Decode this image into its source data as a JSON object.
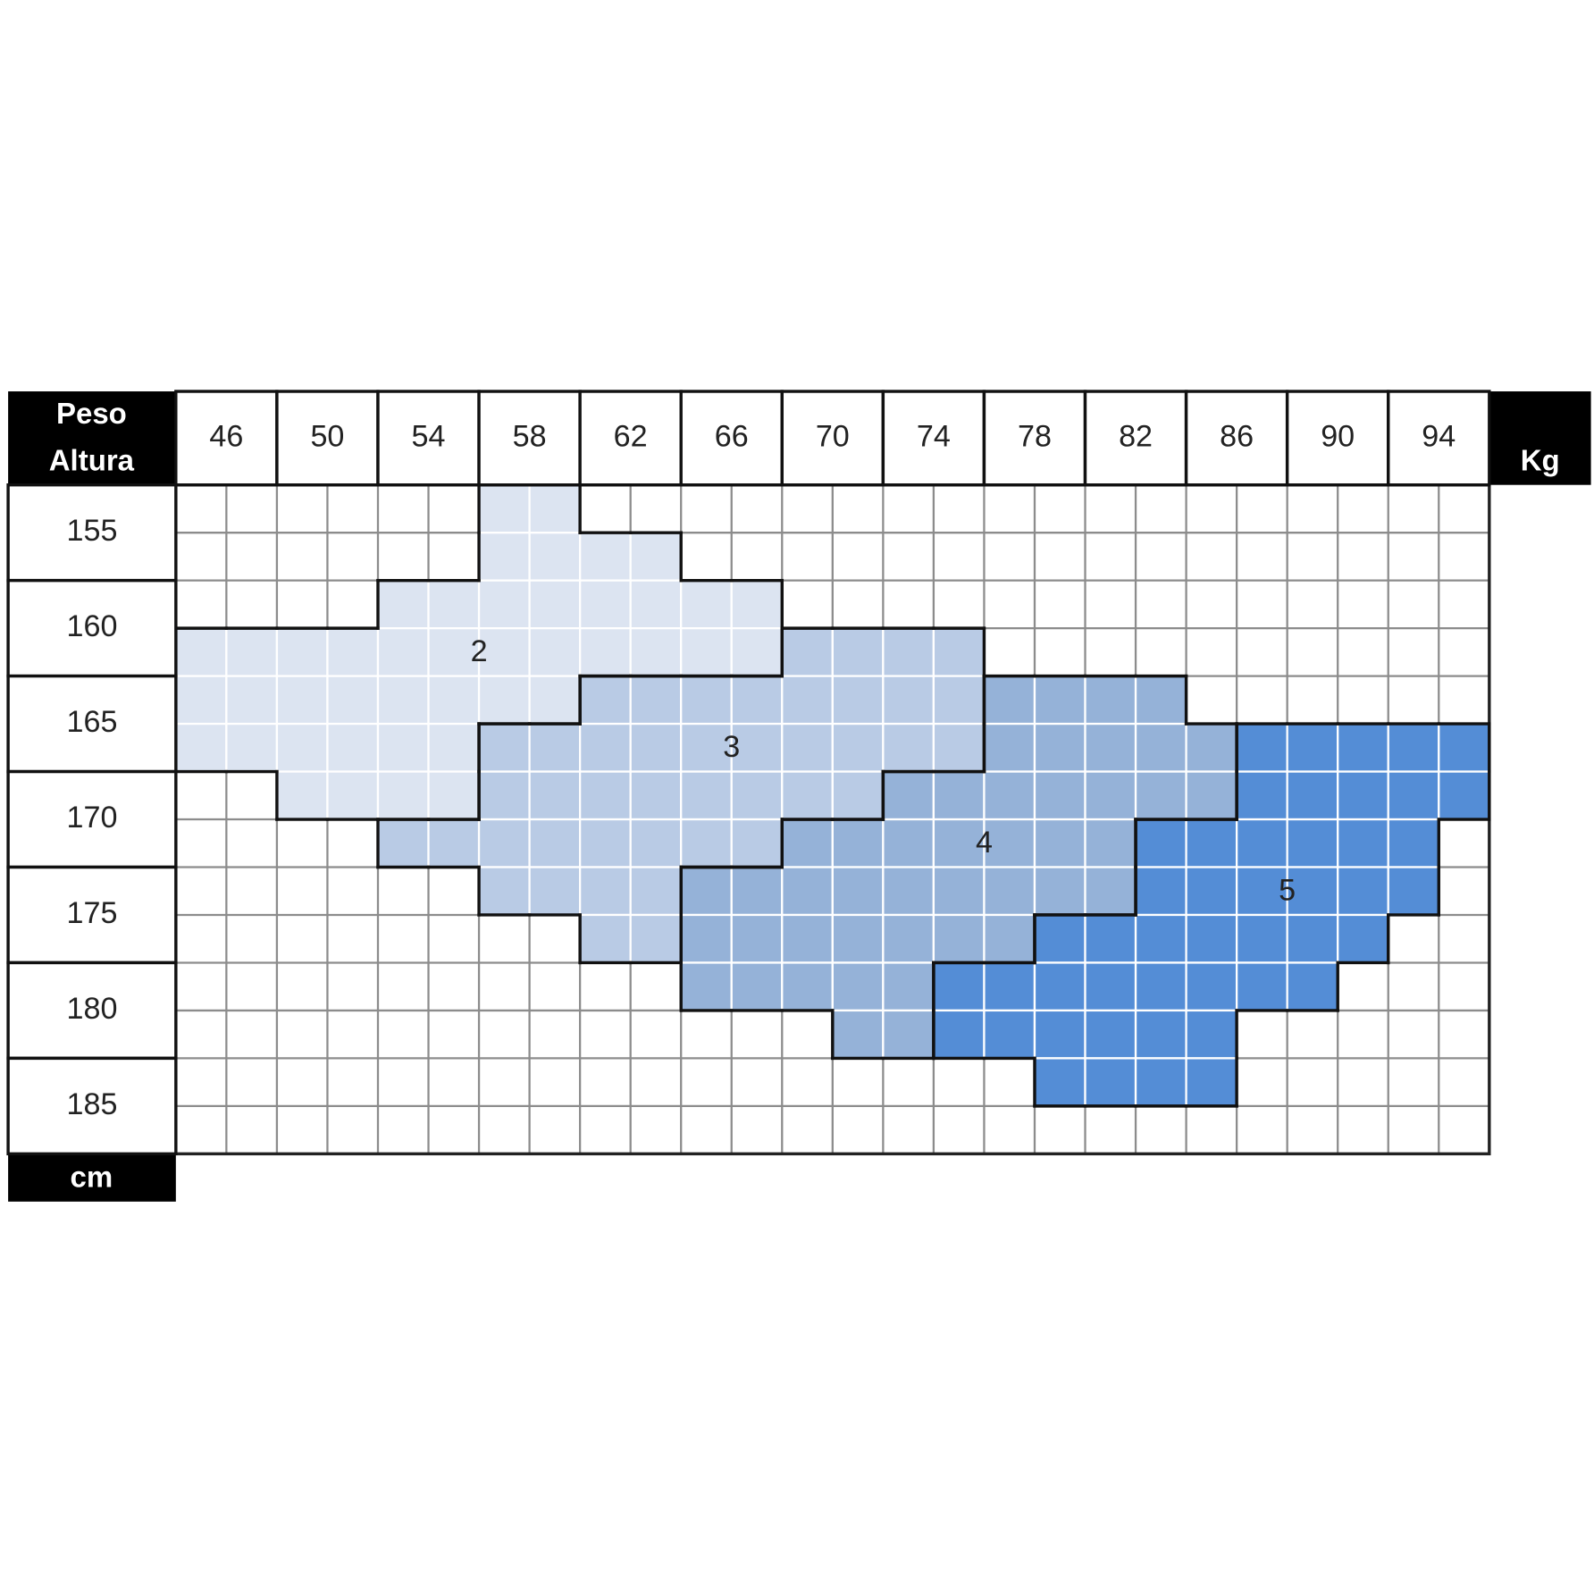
{
  "corner": {
    "top": "Peso",
    "bottom": "Altura"
  },
  "weights": [
    46,
    50,
    54,
    58,
    62,
    66,
    70,
    74,
    78,
    82,
    86,
    90,
    94
  ],
  "weight_unit": "Kg",
  "heights": [
    155,
    160,
    165,
    170,
    175,
    180,
    185
  ],
  "height_unit": "cm",
  "zones": [
    {
      "label": "2"
    },
    {
      "label": "3"
    },
    {
      "label": "4"
    },
    {
      "label": "5"
    }
  ]
}
